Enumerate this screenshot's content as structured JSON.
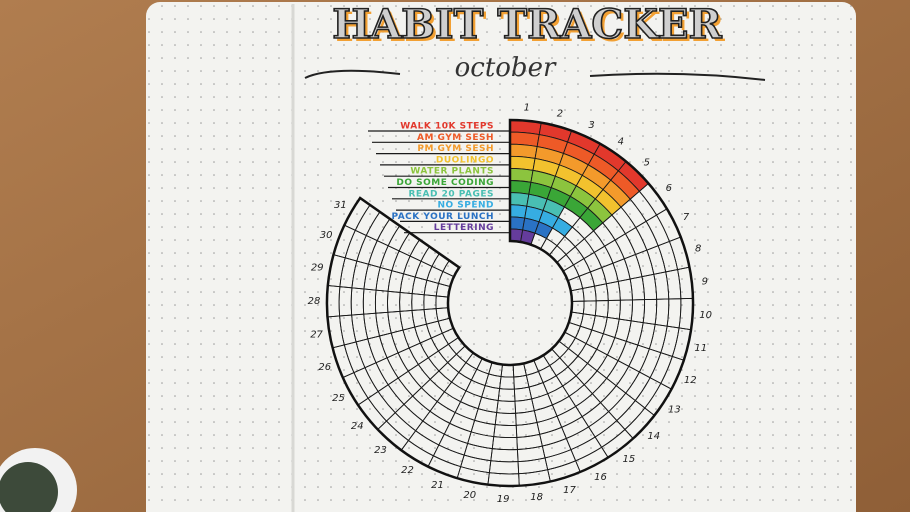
{
  "header": {
    "title": "HABIT TRACKER",
    "subtitle": "october"
  },
  "habits": [
    {
      "label": "walk 10k steps",
      "color": "#e2382c",
      "days_done": 5
    },
    {
      "label": "AM gym sesh",
      "color": "#ee5a27",
      "days_done": 5
    },
    {
      "label": "PM gym sesh",
      "color": "#f39a2b",
      "days_done": 5
    },
    {
      "label": "duolingo",
      "color": "#f2c22e",
      "days_done": 5
    },
    {
      "label": "water plants",
      "color": "#8cc43e",
      "days_done": 5
    },
    {
      "label": "do some coding",
      "color": "#3aa637",
      "days_done": 5
    },
    {
      "label": "read 20 pages",
      "color": "#49bfb3",
      "days_done": 3
    },
    {
      "label": "no spend",
      "color": "#36ade2",
      "days_done": 4
    },
    {
      "label": "pack your lunch",
      "color": "#2a72c4",
      "days_done": 3
    },
    {
      "label": "lettering",
      "color": "#653c9c",
      "days_done": 2
    }
  ],
  "days": [
    1,
    2,
    3,
    4,
    5,
    6,
    7,
    8,
    9,
    10,
    11,
    12,
    13,
    14,
    15,
    16,
    17,
    18,
    19,
    20,
    21,
    22,
    23,
    24,
    25,
    26,
    27,
    28,
    29,
    30,
    31
  ]
}
